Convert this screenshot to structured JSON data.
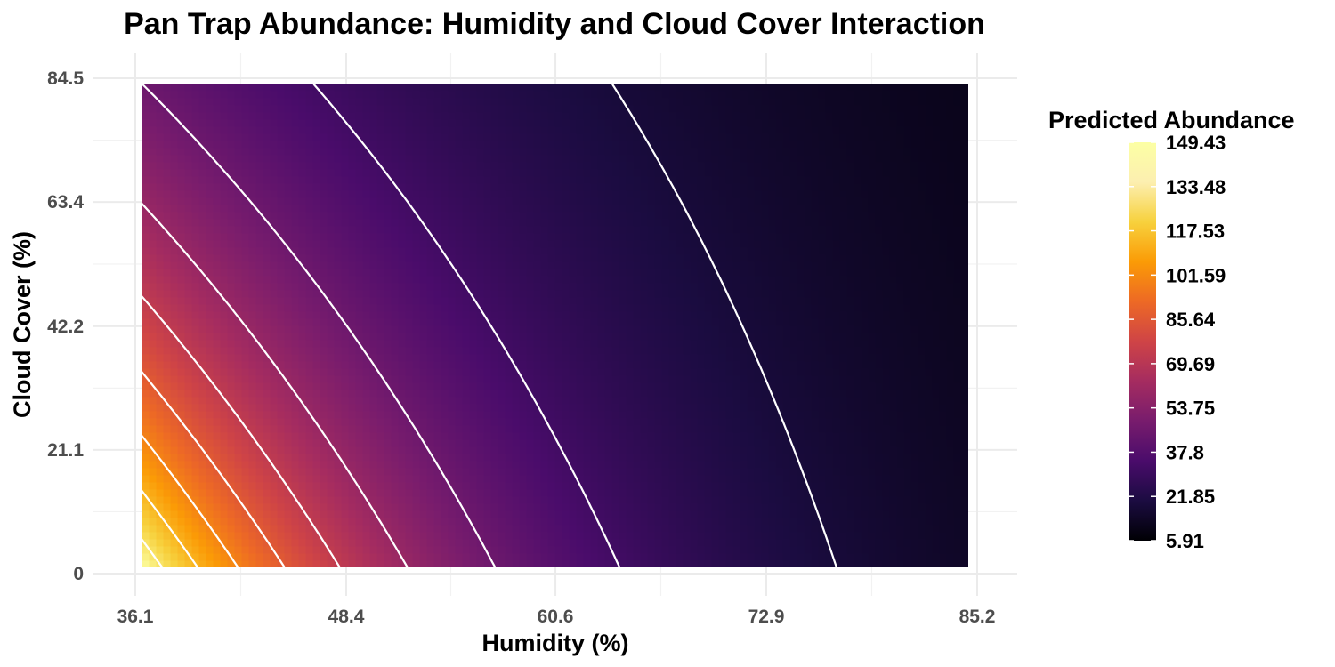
{
  "chart_data": {
    "type": "heatmap",
    "title": "Pan Trap Abundance: Humidity and Cloud Cover Interaction",
    "xlabel": "Humidity (%)",
    "ylabel": "Cloud Cover (%)",
    "x_ticks": [
      "36.1",
      "48.4",
      "60.6",
      "72.9",
      "85.2"
    ],
    "y_ticks": [
      "0",
      "21.1",
      "42.2",
      "63.4",
      "84.5"
    ],
    "xlim": [
      36.1,
      85.2
    ],
    "ylim": [
      0,
      84.5
    ],
    "data_x_range": [
      36.5,
      84.8
    ],
    "data_y_range": [
      1,
      83.5
    ],
    "colormap": "inferno",
    "legend": {
      "title": "Predicted Abundance",
      "labels": [
        "149.43",
        "133.48",
        "117.53",
        "101.59",
        "85.64",
        "69.69",
        "53.75",
        "37.8",
        "21.85",
        "5.91"
      ],
      "min": 5.91,
      "max": 149.43,
      "placement": "right"
    },
    "contour_lines": "white",
    "corner_values": {
      "humidity_36_5_cloud_1": 149.43,
      "humidity_84_8_cloud_1": 12,
      "humidity_36_5_cloud_83_5": 48,
      "humidity_84_8_cloud_83_5": 5.91
    },
    "grid": true
  }
}
